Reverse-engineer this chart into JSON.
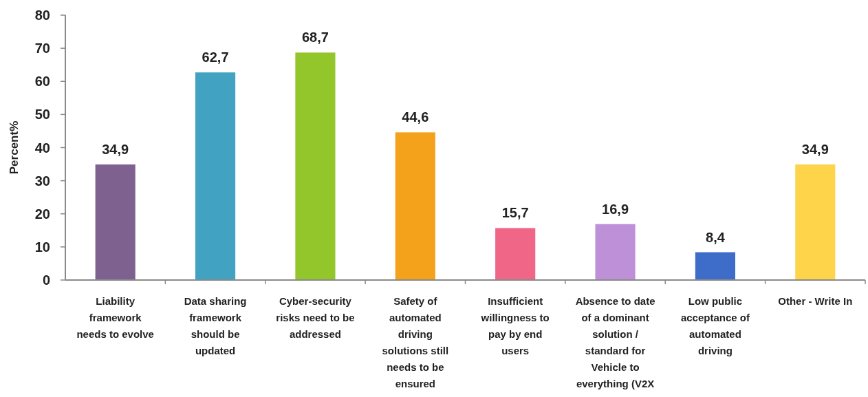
{
  "chart_data": {
    "type": "bar",
    "ylabel": "Percent%",
    "categories": [
      "Liability\nframework\nneeds to evolve",
      "Data sharing\nframework\nshould be\nupdated",
      "Cyber-security\nrisks need to be\naddressed",
      "Safety of\nautomated\ndriving\nsolutions still\nneeds to be\nensured",
      "Insufficient\nwillingness to\npay by end\nusers",
      "Absence to date\nof a dominant\nsolution /\nstandard for\nVehicle to\neverything (V2X",
      "Low public\nacceptance of\nautomated\ndriving",
      "Other - Write In"
    ],
    "values": [
      34.9,
      62.7,
      68.7,
      44.6,
      15.7,
      16.9,
      8.4,
      34.9
    ],
    "colors": [
      "#7f6190",
      "#41a2c2",
      "#93c62a",
      "#f4a21c",
      "#ef6687",
      "#be90d8",
      "#3d6cc9",
      "#fdd44a"
    ],
    "value_labels": [
      "34,9",
      "62,7",
      "68,7",
      "44,6",
      "15,7",
      "16,9",
      "8,4",
      "34,9"
    ],
    "ylim": [
      0,
      80
    ],
    "yticks": [
      0,
      10,
      20,
      30,
      40,
      50,
      60,
      70,
      80
    ]
  }
}
